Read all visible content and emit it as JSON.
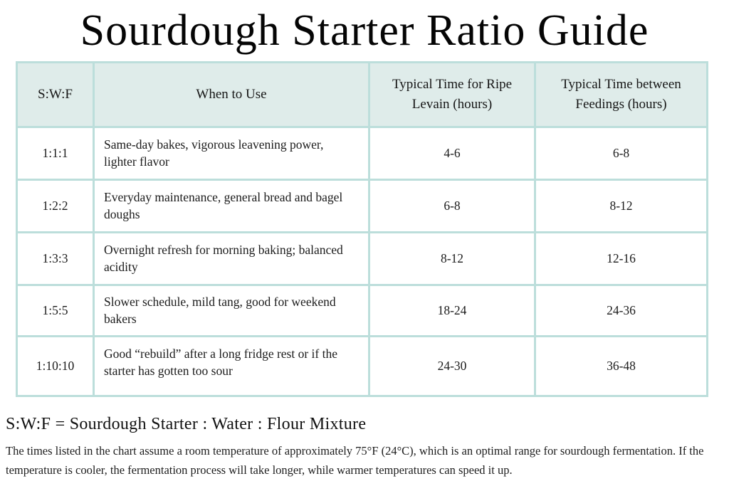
{
  "page": {
    "title": "Sourdough Starter Ratio Guide",
    "legend": "S:W:F = Sourdough Starter : Water : Flour Mixture",
    "footnote": "The times listed in the chart assume a room temperature of approximately 75°F (24°C), which is an optimal range for sourdough fermentation. If the temperature is cooler, the fermentation process will take longer, while warmer temperatures can speed it up."
  },
  "colors": {
    "grid_border": "#bcdedb",
    "header_bg": "#dfecea",
    "row_bg": "#ffffff",
    "text": "#1b1b1b"
  },
  "chart_data": {
    "type": "table",
    "title": "Sourdough Starter Ratio Guide",
    "columns": [
      "S:W:F",
      "When to Use",
      "Typical Time for Ripe Levain (hours)",
      "Typical Time between Feedings (hours)"
    ],
    "rows": [
      [
        "1:1:1",
        "Same-day bakes, vigorous leavening power, lighter flavor",
        "4-6",
        "6-8"
      ],
      [
        "1:2:2",
        "Everyday maintenance, general bread and bagel doughs",
        "6-8",
        "8-12"
      ],
      [
        "1:3:3",
        "Overnight refresh for morning baking; balanced acidity",
        "8-12",
        "12-16"
      ],
      [
        "1:5:5",
        "Slower schedule, mild tang, good for weekend bakers",
        "18-24",
        "24-36"
      ],
      [
        "1:10:10",
        "Good “rebuild” after a long fridge rest or if the starter has gotten too sour",
        "24-30",
        "36-48"
      ]
    ],
    "legend": "S:W:F = Sourdough Starter : Water : Flour Mixture",
    "footnote": "The times listed in the chart assume a room temperature of approximately 75°F (24°C), which is an optimal range for sourdough fermentation. If the temperature is cooler, the fermentation process will take longer, while warmer temperatures can speed it up."
  }
}
